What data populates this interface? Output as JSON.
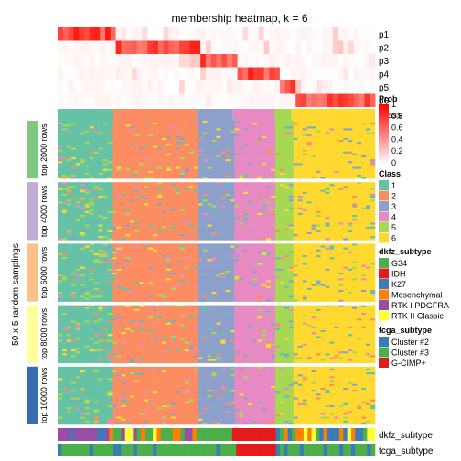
{
  "chart_data": {
    "type": "heatmap",
    "title": "membership heatmap, k = 6",
    "ylabel": "50 x 5 random samplings",
    "prob_rows": [
      "p1",
      "p2",
      "p3",
      "p4",
      "p5",
      "p6"
    ],
    "class_row_label": "Class",
    "row_groups": [
      "top 2000 rows",
      "top 4000 rows",
      "top 6000 rows",
      "top 8000 rows",
      "top 10000 rows"
    ],
    "row_group_colors": [
      "#7FC97F",
      "#BEAED4",
      "#FDC086",
      "#FFFF99",
      "#386CB0"
    ],
    "column_segments": [
      {
        "class": "1",
        "width": 0.2
      },
      {
        "class": "2",
        "width": 0.3
      },
      {
        "class": "3",
        "width": 0.13
      },
      {
        "class": "4",
        "width": 0.15
      },
      {
        "class": "5",
        "width": 0.06
      },
      {
        "class": "6",
        "width": 0.3
      }
    ],
    "bottom_annotations": [
      "dkfz_subtype",
      "tcga_subtype"
    ],
    "legend_prob": {
      "title": "Prob",
      "ticks": [
        "1",
        "0.8",
        "0.6",
        "0.4",
        "0.2",
        "0"
      ]
    },
    "legend_class": {
      "title": "Class",
      "items": [
        {
          "label": "1",
          "color": "#66C2A5"
        },
        {
          "label": "2",
          "color": "#FC8D62"
        },
        {
          "label": "3",
          "color": "#8DA0CB"
        },
        {
          "label": "4",
          "color": "#E78AC3"
        },
        {
          "label": "5",
          "color": "#A6D854"
        },
        {
          "label": "6",
          "color": "#FFD92F"
        }
      ]
    },
    "legend_dkfz": {
      "title": "dkfz_subtype",
      "items": [
        {
          "label": "G34",
          "color": "#4DAF4A"
        },
        {
          "label": "IDH",
          "color": "#E41A1C"
        },
        {
          "label": "K27",
          "color": "#377EB8"
        },
        {
          "label": "Mesenchymal",
          "color": "#FF7F00"
        },
        {
          "label": "RTK I PDGFRA",
          "color": "#984EA3"
        },
        {
          "label": "RTK II Classic",
          "color": "#FFFF33"
        }
      ]
    },
    "legend_tcga": {
      "title": "tcga_subtype",
      "items": [
        {
          "label": "Cluster #2",
          "color": "#377EB8"
        },
        {
          "label": "Cluster #3",
          "color": "#4DAF4A"
        },
        {
          "label": "G-CIMP+",
          "color": "#E41A1C"
        }
      ]
    }
  }
}
